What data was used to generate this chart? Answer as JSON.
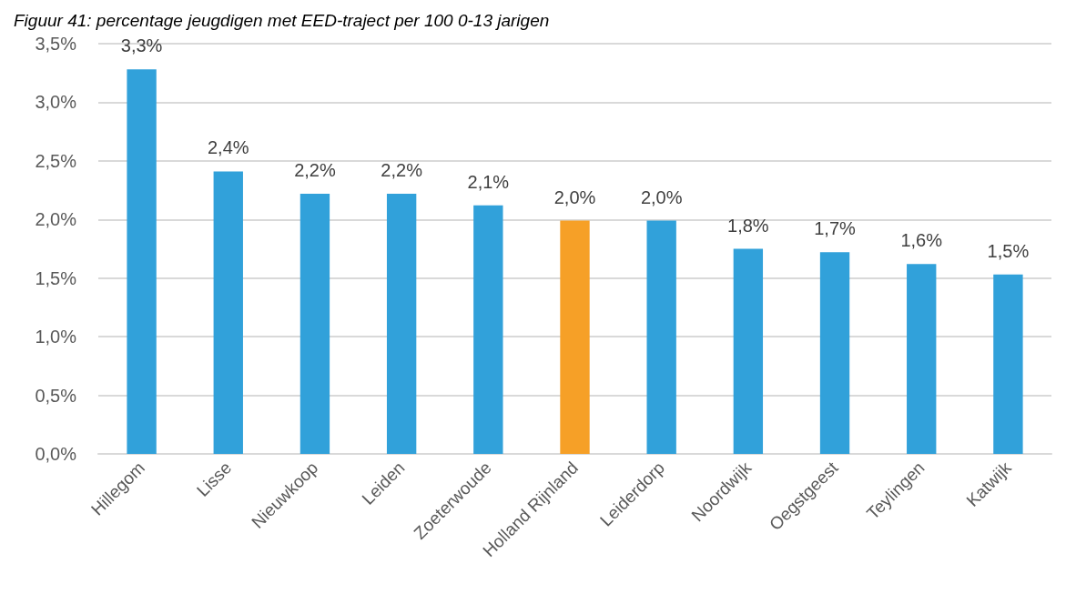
{
  "chart_data": {
    "type": "bar",
    "title": "Figuur 41: percentage jeugdigen met EED-traject per 100 0-13 jarigen",
    "categories": [
      "Hillegom",
      "Lisse",
      "Nieuwkoop",
      "Leiden",
      "Zoeterwoude",
      "Holland Rijnland",
      "Leiderdorp",
      "Noordwijk",
      "Oegstgeest",
      "Teylingen",
      "Katwijk"
    ],
    "values": [
      3.28,
      2.41,
      2.22,
      2.22,
      2.12,
      1.99,
      1.99,
      1.75,
      1.72,
      1.62,
      1.53
    ],
    "colors": [
      "#31a1da",
      "#31a1da",
      "#31a1da",
      "#31a1da",
      "#31a1da",
      "#f6a027",
      "#31a1da",
      "#31a1da",
      "#31a1da",
      "#31a1da",
      "#31a1da"
    ],
    "value_labels": [
      "3,3%",
      "2,4%",
      "2,2%",
      "2,2%",
      "2,1%",
      "2,0%",
      "2,0%",
      "1,8%",
      "1,7%",
      "1,6%",
      "1,5%"
    ],
    "ylim": [
      0,
      3.5
    ],
    "yticks": [
      {
        "value": 0,
        "label": "0,0%"
      },
      {
        "value": 0.5,
        "label": "0,5%"
      },
      {
        "value": 1,
        "label": "1,0%"
      },
      {
        "value": 1.5,
        "label": "1,5%"
      },
      {
        "value": 2,
        "label": "2,0%"
      },
      {
        "value": 2.5,
        "label": "2,5%"
      },
      {
        "value": 3,
        "label": "3,0%"
      },
      {
        "value": 3.5,
        "label": "3,5%"
      }
    ],
    "grid": "y"
  }
}
